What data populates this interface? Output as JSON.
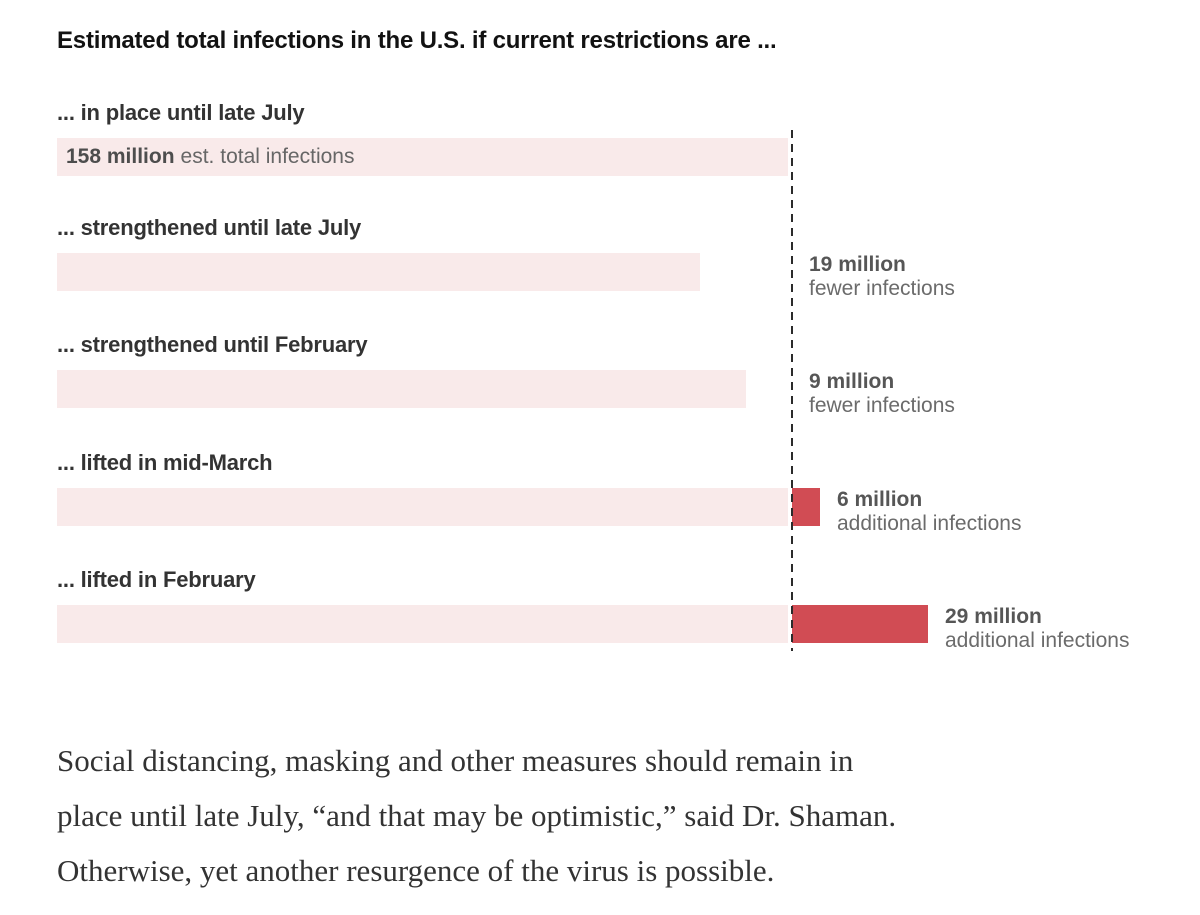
{
  "chart": {
    "title": "Estimated total infections in the U.S. if current restrictions are ...",
    "baseline_millions": 158,
    "rows": [
      {
        "label": "... in place until late July",
        "value_millions": 158,
        "delta_millions": 0,
        "bar_label_bold": "158 million",
        "bar_label_rest": "est. total infections"
      },
      {
        "label": "... strengthened until late July",
        "value_millions": 139,
        "delta_millions": -19,
        "note_bold": "19 million",
        "note_rest": "fewer infections"
      },
      {
        "label": "... strengthened until February",
        "value_millions": 149,
        "delta_millions": -9,
        "note_bold": "9 million",
        "note_rest": "fewer infections"
      },
      {
        "label": "... lifted in mid-March",
        "value_millions": 164,
        "delta_millions": 6,
        "note_bold": "6 million",
        "note_rest": "additional infections"
      },
      {
        "label": "... lifted in February",
        "value_millions": 187,
        "delta_millions": 29,
        "note_bold": "29 million",
        "note_rest": "additional infections"
      }
    ],
    "colors": {
      "bar_pink": "#f9eaea",
      "bar_red": "#d14c54",
      "dashed_line": "#2b2b2b",
      "title_text": "#121212",
      "label_text": "#333333",
      "note_text_bold": "#565656",
      "note_text": "#6b6b6b"
    }
  },
  "chart_data": {
    "type": "bar",
    "orientation": "horizontal",
    "title": "Estimated total infections in the U.S. if current restrictions are ...",
    "categories": [
      "... in place until late July",
      "... strengthened until late July",
      "... strengthened until February",
      "... lifted in mid-March",
      "... lifted in February"
    ],
    "values": [
      158,
      139,
      149,
      164,
      187
    ],
    "unit": "million infections",
    "baseline": 158,
    "deltas_from_baseline": [
      0,
      -19,
      -9,
      6,
      29
    ],
    "data_labels": [
      "158 million est. total infections",
      "19 million fewer infections",
      "9 million fewer infections",
      "6 million additional infections",
      "29 million additional infections"
    ],
    "xlim": [
      0,
      187
    ],
    "grid": false,
    "legend": false,
    "annotation_line": "dashed vertical reference line at baseline 158 million"
  },
  "caption": {
    "lines": [
      "Social distancing, masking and other measures should remain in",
      "place until late July, “and that may be optimistic,” said Dr. Shaman.",
      "Otherwise, yet another resurgence of the virus is possible."
    ]
  }
}
